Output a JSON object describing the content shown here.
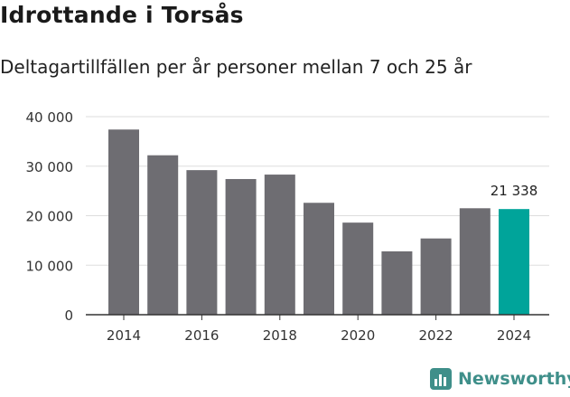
{
  "title": "Idrottande i Torsås",
  "subtitle": "Deltagartillfällen per år personer mellan 7 och 25 år",
  "brand": "Newsworthy",
  "colors": {
    "bar": "#6e6d72",
    "highlight": "#00a49a",
    "grid": "#dddddd",
    "axis": "#333333",
    "brand": "#3f8f8a"
  },
  "chart_data": {
    "type": "bar",
    "x": [
      2014,
      2015,
      2016,
      2017,
      2018,
      2019,
      2020,
      2021,
      2022,
      2023,
      2024
    ],
    "values": [
      37400,
      32200,
      29200,
      27400,
      28300,
      22600,
      18600,
      12800,
      15400,
      21500,
      21338
    ],
    "highlight_index": 10,
    "annotation": "21 338",
    "xticks": [
      "2014",
      "2016",
      "2018",
      "2020",
      "2022",
      "2024"
    ],
    "yticks": [
      "0",
      "10 000",
      "20 000",
      "30 000",
      "40 000"
    ],
    "ylim": [
      0,
      40000
    ],
    "grid": true
  }
}
